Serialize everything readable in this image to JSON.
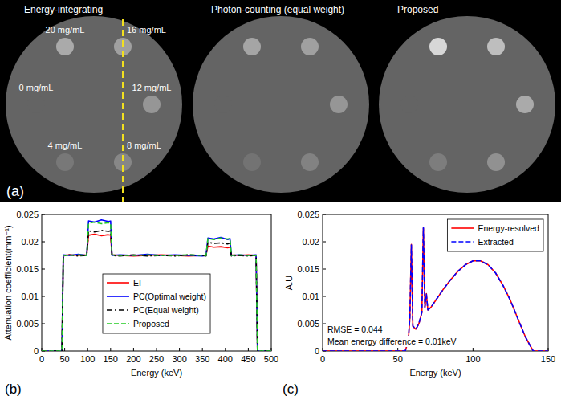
{
  "panel_a": {
    "label": "(a)",
    "phantom_gray": 100,
    "insert_labels": [
      "20 mg/mL",
      "16 mg/mL",
      "12 mg/mL",
      "8 mg/mL",
      "4 mg/mL",
      "0 mg/mL"
    ],
    "images": [
      {
        "title": "Energy-integrating",
        "insert_gray": [
          170,
          160,
          150,
          135,
          120,
          100
        ]
      },
      {
        "title": "Photon-counting (equal weight)",
        "insert_gray": [
          165,
          160,
          150,
          130,
          115,
          100
        ]
      },
      {
        "title": "Proposed",
        "insert_gray": [
          215,
          190,
          170,
          145,
          125,
          100
        ]
      }
    ]
  },
  "chart_data": [
    {
      "type": "line",
      "panel_label": "(b)",
      "x_label": "Energy (keV)",
      "y_label": "Attenuation coefficient(mm⁻¹)",
      "xlim": [
        0,
        500
      ],
      "xticks": [
        0,
        50,
        100,
        150,
        200,
        250,
        300,
        350,
        400,
        450,
        500
      ],
      "ylim": [
        0,
        0.025
      ],
      "yticks": [
        0,
        0.005,
        0.01,
        0.015,
        0.02,
        0.025
      ],
      "grid": false,
      "legend": "lower center",
      "x": [
        0,
        44,
        47,
        60,
        80,
        98,
        102,
        115,
        130,
        145,
        150,
        153,
        170,
        200,
        230,
        260,
        290,
        320,
        350,
        358,
        362,
        375,
        390,
        405,
        410,
        413,
        430,
        450,
        467,
        470,
        500
      ],
      "series": [
        {
          "name": "EI",
          "color": "#ff0000",
          "line_style": "solid",
          "values": [
            0,
            0,
            0.0175,
            0.0176,
            0.0175,
            0.0176,
            0.0212,
            0.0214,
            0.0211,
            0.0213,
            0.0212,
            0.0176,
            0.0175,
            0.0174,
            0.0175,
            0.0176,
            0.0175,
            0.0174,
            0.0175,
            0.0176,
            0.0192,
            0.019,
            0.0191,
            0.0189,
            0.019,
            0.0176,
            0.0175,
            0.0176,
            0.0175,
            0,
            0
          ]
        },
        {
          "name": "PC(Optimal weight)",
          "color": "#0000ff",
          "line_style": "solid",
          "values": [
            0,
            0,
            0.0176,
            0.0175,
            0.0177,
            0.0175,
            0.0238,
            0.0236,
            0.024,
            0.0237,
            0.0238,
            0.0175,
            0.0176,
            0.0175,
            0.0177,
            0.0175,
            0.0176,
            0.0175,
            0.0174,
            0.0175,
            0.0207,
            0.0205,
            0.0208,
            0.0204,
            0.0206,
            0.0175,
            0.0176,
            0.0175,
            0.0176,
            0,
            0
          ]
        },
        {
          "name": "PC(Equal weight)",
          "color": "#000000",
          "line_style": "dashdot",
          "values": [
            0,
            0,
            0.0174,
            0.0176,
            0.0174,
            0.0175,
            0.022,
            0.0218,
            0.0221,
            0.0219,
            0.022,
            0.0175,
            0.0174,
            0.0176,
            0.0174,
            0.0175,
            0.0174,
            0.0176,
            0.0175,
            0.0174,
            0.0199,
            0.0197,
            0.0198,
            0.0196,
            0.0198,
            0.0174,
            0.0175,
            0.0174,
            0.0175,
            0,
            0
          ]
        },
        {
          "name": "Proposed",
          "color": "#22cc22",
          "line_style": "dashed",
          "values": [
            0,
            0,
            0.0175,
            0.0175,
            0.0176,
            0.0175,
            0.0234,
            0.0236,
            0.0233,
            0.0235,
            0.0234,
            0.0176,
            0.0175,
            0.0175,
            0.0176,
            0.0175,
            0.0175,
            0.0176,
            0.0175,
            0.0175,
            0.0206,
            0.0204,
            0.0207,
            0.0205,
            0.0206,
            0.0175,
            0.0176,
            0.0175,
            0.0175,
            0,
            0
          ]
        }
      ]
    },
    {
      "type": "line",
      "panel_label": "(c)",
      "x_label": "Energy (keV)",
      "y_label": "A.U",
      "xlim": [
        0,
        150
      ],
      "xticks": [
        0,
        50,
        100,
        150
      ],
      "ylim": [
        0,
        0.025
      ],
      "yticks": [
        0,
        0.005,
        0.01,
        0.015,
        0.02,
        0.025
      ],
      "grid": false,
      "legend": "upper right",
      "annotations": [
        "RMSE = 0.044",
        "Mean energy difference = 0.01keV"
      ],
      "x": [
        0,
        55,
        57,
        58,
        59,
        60,
        62,
        64,
        66,
        67,
        68,
        69,
        70,
        72,
        75,
        80,
        85,
        90,
        95,
        100,
        105,
        110,
        115,
        120,
        125,
        130,
        135,
        140,
        150
      ],
      "series": [
        {
          "name": "Energy-resolved",
          "color": "#ff0000",
          "line_style": "solid",
          "values": [
            0,
            0,
            0.002,
            0.006,
            0.0195,
            0.0045,
            0.004,
            0.005,
            0.007,
            0.0225,
            0.008,
            0.0105,
            0.0075,
            0.008,
            0.0092,
            0.0112,
            0.013,
            0.0146,
            0.0158,
            0.0165,
            0.0165,
            0.0158,
            0.0143,
            0.012,
            0.0092,
            0.0058,
            0.0025,
            0,
            0
          ]
        },
        {
          "name": "Extracted",
          "color": "#0000ff",
          "line_style": "dashed",
          "values": [
            0,
            0,
            0.0021,
            0.0061,
            0.0194,
            0.0046,
            0.004,
            0.005,
            0.0071,
            0.0226,
            0.008,
            0.0104,
            0.0075,
            0.008,
            0.0092,
            0.0112,
            0.013,
            0.0146,
            0.0158,
            0.0165,
            0.0165,
            0.0158,
            0.0143,
            0.012,
            0.0092,
            0.0058,
            0.0025,
            0,
            0
          ]
        }
      ]
    }
  ]
}
